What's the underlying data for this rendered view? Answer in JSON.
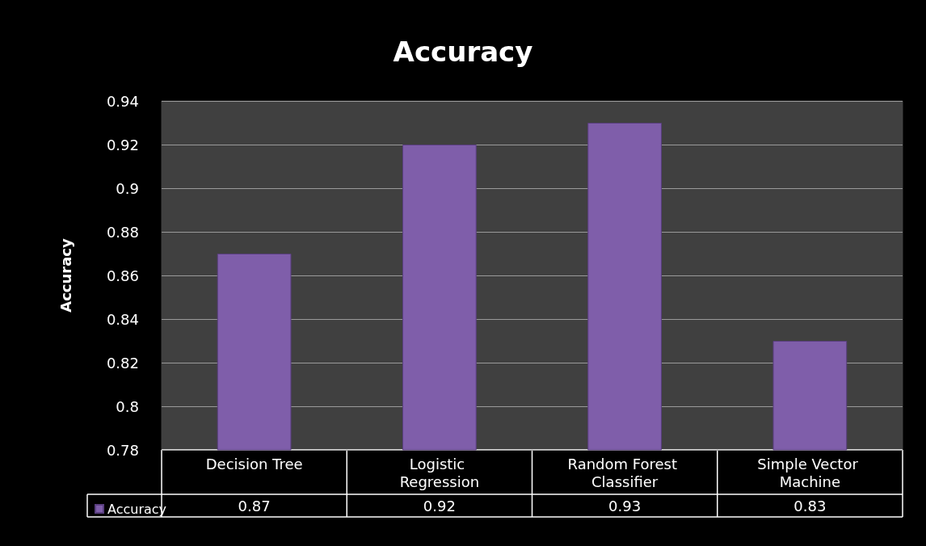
{
  "chart_data": {
    "type": "bar",
    "title": "Accuracy",
    "ylabel": "Accuracy",
    "categories": [
      "Decision Tree",
      "Logistic Regression",
      "Random Forest Classifier",
      "Simple Vector Machine"
    ],
    "series": [
      {
        "name": "Accuracy",
        "color": "#7f5eaa",
        "values": [
          0.87,
          0.92,
          0.93,
          0.83
        ]
      }
    ],
    "ylim": [
      0.78,
      0.94
    ],
    "yticks": [
      0.78,
      0.8,
      0.82,
      0.84,
      0.86,
      0.88,
      0.9,
      0.92,
      0.94
    ],
    "grid": "y",
    "legend": "bottom left",
    "data_labels": true
  }
}
